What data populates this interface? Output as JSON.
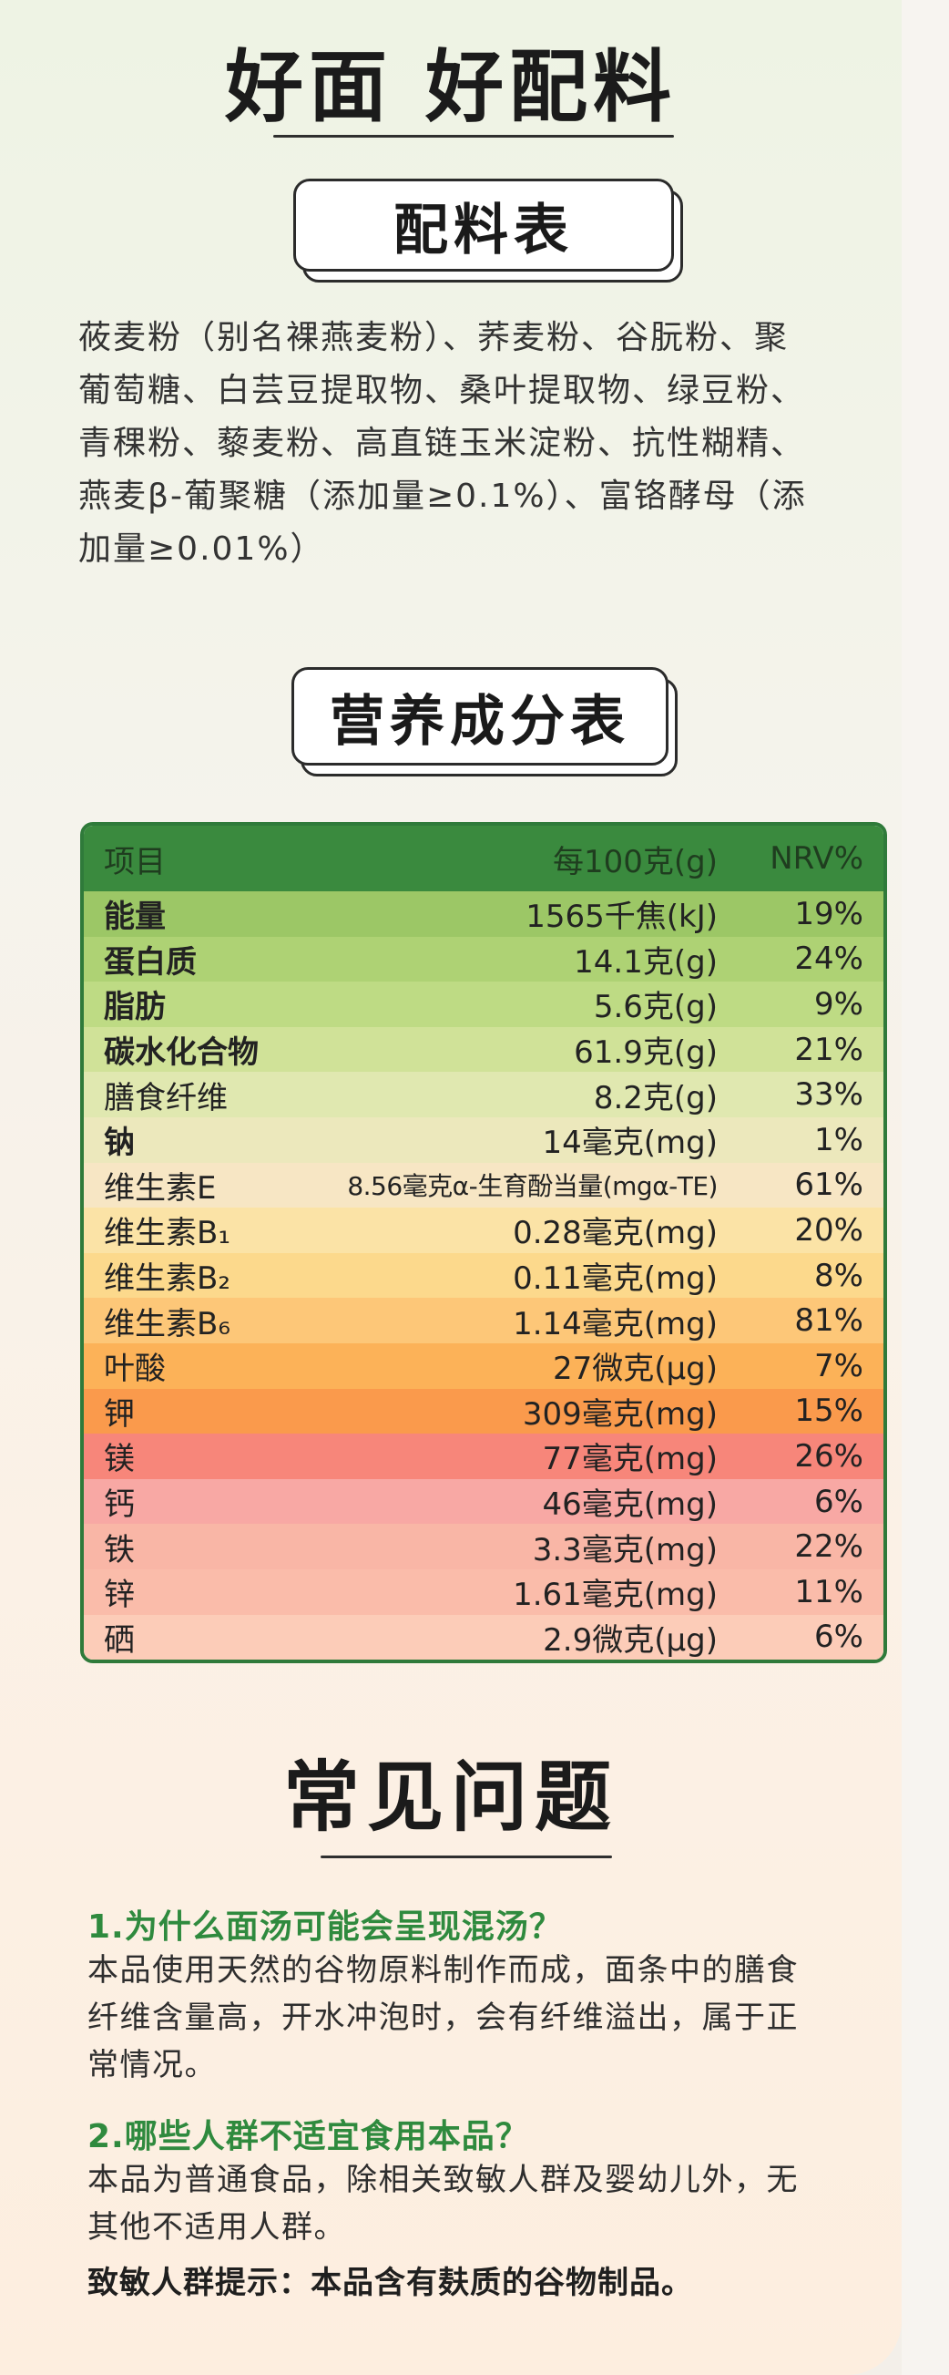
{
  "header": {
    "title": "好面 好配料"
  },
  "ingredients": {
    "heading": "配料表",
    "lines": [
      "莜麦粉（别名裸燕麦粉）、荞麦粉、谷朊粉、聚",
      "葡萄糖、白芸豆提取物、桑叶提取物、绿豆粉、",
      "青稞粉、藜麦粉、高直链玉米淀粉、抗性糊精、",
      "燕麦β-葡聚糖（添加量≥0.1%）、富铬酵母（添",
      "加量≥0.01%）"
    ]
  },
  "nutrition": {
    "heading": "营养成分表",
    "columns": [
      "项目",
      "每100克(g)",
      "NRV%"
    ],
    "header_color": "#3a8a3e",
    "rows": [
      {
        "name": "能量",
        "amount": "1565千焦(kJ)",
        "nrv": "19%",
        "bold": true,
        "color": "#9cc766"
      },
      {
        "name": "蛋白质",
        "amount": "14.1克(g)",
        "nrv": "24%",
        "bold": true,
        "color": "#aed274"
      },
      {
        "name": "脂肪",
        "amount": "5.6克(g)",
        "nrv": "9%",
        "bold": true,
        "color": "#bedb84"
      },
      {
        "name": "碳水化合物",
        "amount": "61.9克(g)",
        "nrv": "21%",
        "bold": true,
        "color": "#d0e298"
      },
      {
        "name": "膳食纤维",
        "amount": "8.2克(g)",
        "nrv": "33%",
        "bold": false,
        "color": "#e0e8b0"
      },
      {
        "name": "钠",
        "amount": "14毫克(mg)",
        "nrv": "1%",
        "bold": true,
        "color": "#ece8bc"
      },
      {
        "name": "维生素E",
        "amount": "8.56毫克α-生育酚当量(mgα-TE)",
        "nrv": "61%",
        "bold": false,
        "small": true,
        "color": "#f7e6c4"
      },
      {
        "name": "维生素B₁",
        "amount": "0.28毫克(mg)",
        "nrv": "20%",
        "bold": false,
        "color": "#fbe3a6"
      },
      {
        "name": "维生素B₂",
        "amount": "0.11毫克(mg)",
        "nrv": "8%",
        "bold": false,
        "color": "#fcd98c"
      },
      {
        "name": "维生素B₆",
        "amount": "1.14毫克(mg)",
        "nrv": "81%",
        "bold": false,
        "color": "#fdc778"
      },
      {
        "name": "叶酸",
        "amount": "27微克(μg)",
        "nrv": "7%",
        "bold": false,
        "color": "#fcb258"
      },
      {
        "name": "钾",
        "amount": "309毫克(mg)",
        "nrv": "15%",
        "bold": false,
        "color": "#fa9a4c"
      },
      {
        "name": "镁",
        "amount": "77毫克(mg)",
        "nrv": "26%",
        "bold": false,
        "color": "#f7867a"
      },
      {
        "name": "钙",
        "amount": "46毫克(mg)",
        "nrv": "6%",
        "bold": false,
        "color": "#f8a8a4"
      },
      {
        "name": "铁",
        "amount": "3.3毫克(mg)",
        "nrv": "22%",
        "bold": false,
        "color": "#f9b6a6"
      },
      {
        "name": "锌",
        "amount": "1.61毫克(mg)",
        "nrv": "11%",
        "bold": false,
        "color": "#fabcaa"
      },
      {
        "name": "硒",
        "amount": "2.9微克(μg)",
        "nrv": "6%",
        "bold": false,
        "color": "#fcccb8"
      }
    ]
  },
  "faq": {
    "title": "常见问题",
    "items": [
      {
        "question": "1.为什么面汤可能会呈现混汤？",
        "answer_lines": [
          "本品使用天然的谷物原料制作而成，面条中的膳食",
          "纤维含量高，开水冲泡时，会有纤维溢出，属于正",
          "常情况。"
        ]
      },
      {
        "question": "2.哪些人群不适宜食用本品？",
        "answer_lines": [
          "本品为普通食品，除相关致敏人群及婴幼儿外，无",
          "其他不适用人群。"
        ]
      }
    ],
    "allergen_note": "致敏人群提示：本品含有麸质的谷物制品。"
  }
}
